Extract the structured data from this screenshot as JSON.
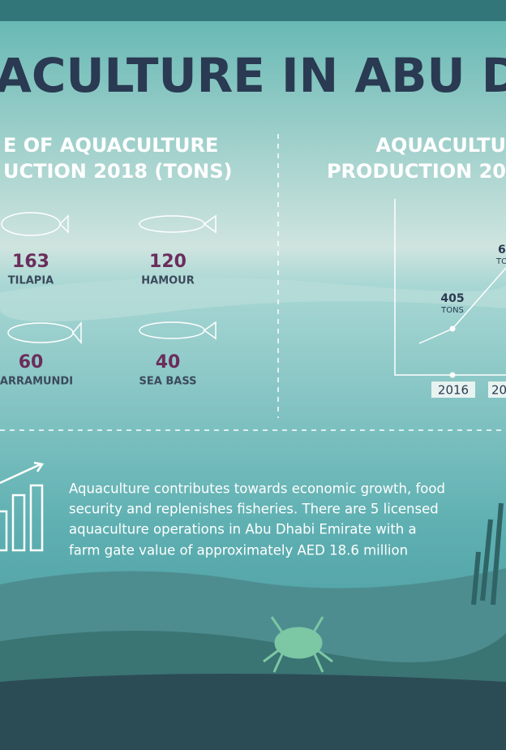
{
  "title": "ACULTURE IN ABU D",
  "left_section": {
    "heading": [
      "E OF AQUACULTURE",
      "UCTION 2018 (TONS)"
    ],
    "fish": [
      {
        "value": "163",
        "name": "TILAPIA"
      },
      {
        "value": "120",
        "name": "HAMOUR"
      },
      {
        "value": "60",
        "name": "ARRAMUNDI"
      },
      {
        "value": "40",
        "name": "SEA BASS"
      }
    ]
  },
  "right_section": {
    "heading": [
      "AQUACULTU",
      "PRODUCTION 20"
    ],
    "points": [
      {
        "value": "405",
        "unit": "TONS",
        "year": "2016"
      },
      {
        "value": "6",
        "unit": "TO",
        "year": "20"
      }
    ]
  },
  "description": [
    "Aquaculture contributes towards economic growth, food",
    "security and replenishes fisheries. There are 5 licensed",
    "aquaculture operations in Abu Dhabi Emirate with a",
    "farm gate value of approximately AED 18.6 million"
  ]
}
